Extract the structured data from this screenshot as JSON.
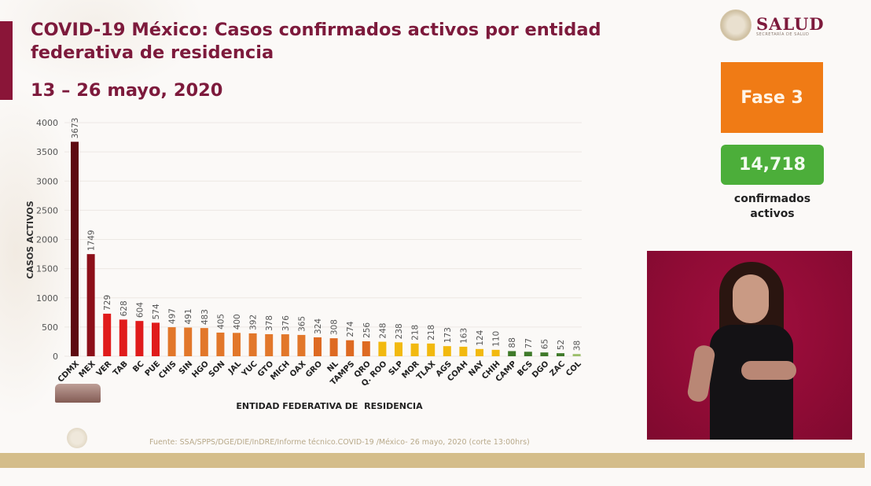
{
  "header": {
    "title": "COVID-19 México: Casos confirmados activos por entidad federativa de residencia",
    "subtitle": "13 – 26 mayo, 2020"
  },
  "logo": {
    "name": "SALUD",
    "subtitle": "SECRETARÍA DE SALUD",
    "icon": "national-seal-icon"
  },
  "phase": {
    "label": "Fase 3",
    "color": "#f07b15"
  },
  "total": {
    "value": "14,718",
    "label": "confirmados activos",
    "color": "#4cae3a"
  },
  "video": {
    "description": "sign-language-interpreter"
  },
  "footer": {
    "source": "Fuente: SSA/SPPS/DGE/DIE/InDRE/Informe técnico.COVID-19 /México- 26 mayo, 2020 (corte 13:00hrs)"
  },
  "chart_data": {
    "type": "bar",
    "title": "COVID-19 México: Casos confirmados activos por entidad federativa de residencia",
    "subtitle": "13 – 26 mayo, 2020",
    "xlabel": "ENTIDAD FEDERATIVA DE  RESIDENCIA",
    "ylabel": "CASOS ACTIVOS",
    "ylim": [
      0,
      4000
    ],
    "yticks": [
      0,
      500,
      1000,
      1500,
      2000,
      2500,
      3000,
      3500,
      4000
    ],
    "grid": true,
    "legend": "none",
    "categories": [
      "CDMX",
      "MEX",
      "VER",
      "TAB",
      "BC",
      "PUE",
      "CHIS",
      "SIN",
      "HGO",
      "SON",
      "JAL",
      "YUC",
      "GTO",
      "MICH",
      "OAX",
      "GRO",
      "NL",
      "TAMPS",
      "QRO",
      "Q. ROO",
      "SLP",
      "MOR",
      "TLAX",
      "AGS",
      "COAH",
      "NAY",
      "CHIH",
      "CAMP",
      "BCS",
      "DGO",
      "ZAC",
      "COL"
    ],
    "values": [
      3673,
      1749,
      729,
      628,
      604,
      574,
      497,
      491,
      483,
      405,
      400,
      392,
      378,
      376,
      365,
      324,
      308,
      274,
      256,
      248,
      238,
      218,
      218,
      173,
      163,
      124,
      110,
      88,
      77,
      65,
      52,
      38
    ],
    "colors": [
      "#5e0a12",
      "#8c0f19",
      "#e01b1b",
      "#e01b1b",
      "#e01b1b",
      "#e01b1b",
      "#e2772a",
      "#e2772a",
      "#e2772a",
      "#e2772a",
      "#e2772a",
      "#e2772a",
      "#e2772a",
      "#e2772a",
      "#e2772a",
      "#de6a22",
      "#de6a22",
      "#de6a22",
      "#de6a22",
      "#f2b90f",
      "#f2b90f",
      "#f2b90f",
      "#f2b90f",
      "#f2b90f",
      "#f2b90f",
      "#f2b90f",
      "#f2b90f",
      "#3f7a2a",
      "#3f7a2a",
      "#3f7a2a",
      "#3f7a2a",
      "#9bbf6a"
    ]
  }
}
